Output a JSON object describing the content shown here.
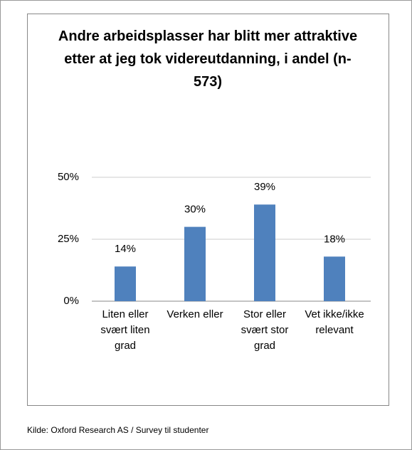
{
  "chart_data": {
    "type": "bar",
    "title": "Andre arbeidsplasser har blitt mer attraktive etter at jeg tok videreutdanning, i andel (n-573)",
    "categories": [
      "Liten eller svært liten grad",
      "Verken eller",
      "Stor eller svært stor grad",
      "Vet ikke/ikke relevant"
    ],
    "values": [
      14,
      30,
      39,
      18
    ],
    "value_labels": [
      "14%",
      "30%",
      "39%",
      "18%"
    ],
    "color": "#4f81bd",
    "ylim": [
      0,
      50
    ],
    "yticks": [
      {
        "value": 0,
        "label": "0%"
      },
      {
        "value": 25,
        "label": "25%"
      },
      {
        "value": 50,
        "label": "50%"
      }
    ],
    "grid": true,
    "source": "Kilde: Oxford Research AS / Survey til studenter"
  }
}
